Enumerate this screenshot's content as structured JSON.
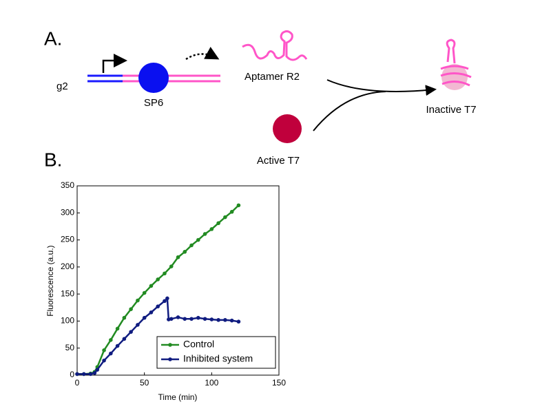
{
  "diagram": {
    "panel_label": "A.",
    "gene": "g2",
    "promoter": "SP6",
    "product": "Aptamer R2",
    "enzyme": "Active T7",
    "complex": "Inactive T7"
  },
  "chart_data": {
    "type": "line",
    "panel_label": "B.",
    "x_label": "Time (min)",
    "y_label": "Fluorescence (a.u.)",
    "xlim": [
      0,
      150
    ],
    "xticks": [
      0,
      50,
      100,
      150
    ],
    "ylim": [
      0,
      350
    ],
    "yticks": [
      0,
      50,
      100,
      150,
      200,
      250,
      300,
      350
    ],
    "grid": false,
    "legend": "lower right",
    "series": [
      {
        "name": "Control",
        "color": "#228b22",
        "x": [
          0,
          5,
          10,
          13,
          15,
          20,
          25,
          30,
          35,
          40,
          45,
          50,
          55,
          60,
          65,
          70,
          75,
          80,
          85,
          90,
          95,
          100,
          105,
          110,
          115,
          120
        ],
        "values": [
          2,
          2,
          3,
          6,
          15,
          46,
          65,
          86,
          106,
          122,
          138,
          152,
          165,
          177,
          188,
          201,
          218,
          228,
          240,
          250,
          261,
          270,
          281,
          292,
          302,
          314
        ]
      },
      {
        "name": "Inhibited system",
        "color": "#101c80",
        "x": [
          0,
          5,
          10,
          13,
          15,
          20,
          25,
          30,
          35,
          40,
          45,
          50,
          55,
          60,
          65,
          67,
          68,
          70,
          75,
          80,
          85,
          90,
          95,
          100,
          105,
          110,
          115,
          120
        ],
        "values": [
          2,
          2,
          2,
          4,
          10,
          27,
          40,
          54,
          67,
          80,
          93,
          106,
          116,
          127,
          137,
          142,
          103,
          104,
          107,
          104,
          104,
          106,
          104,
          103,
          102,
          102,
          101,
          99
        ]
      }
    ]
  }
}
